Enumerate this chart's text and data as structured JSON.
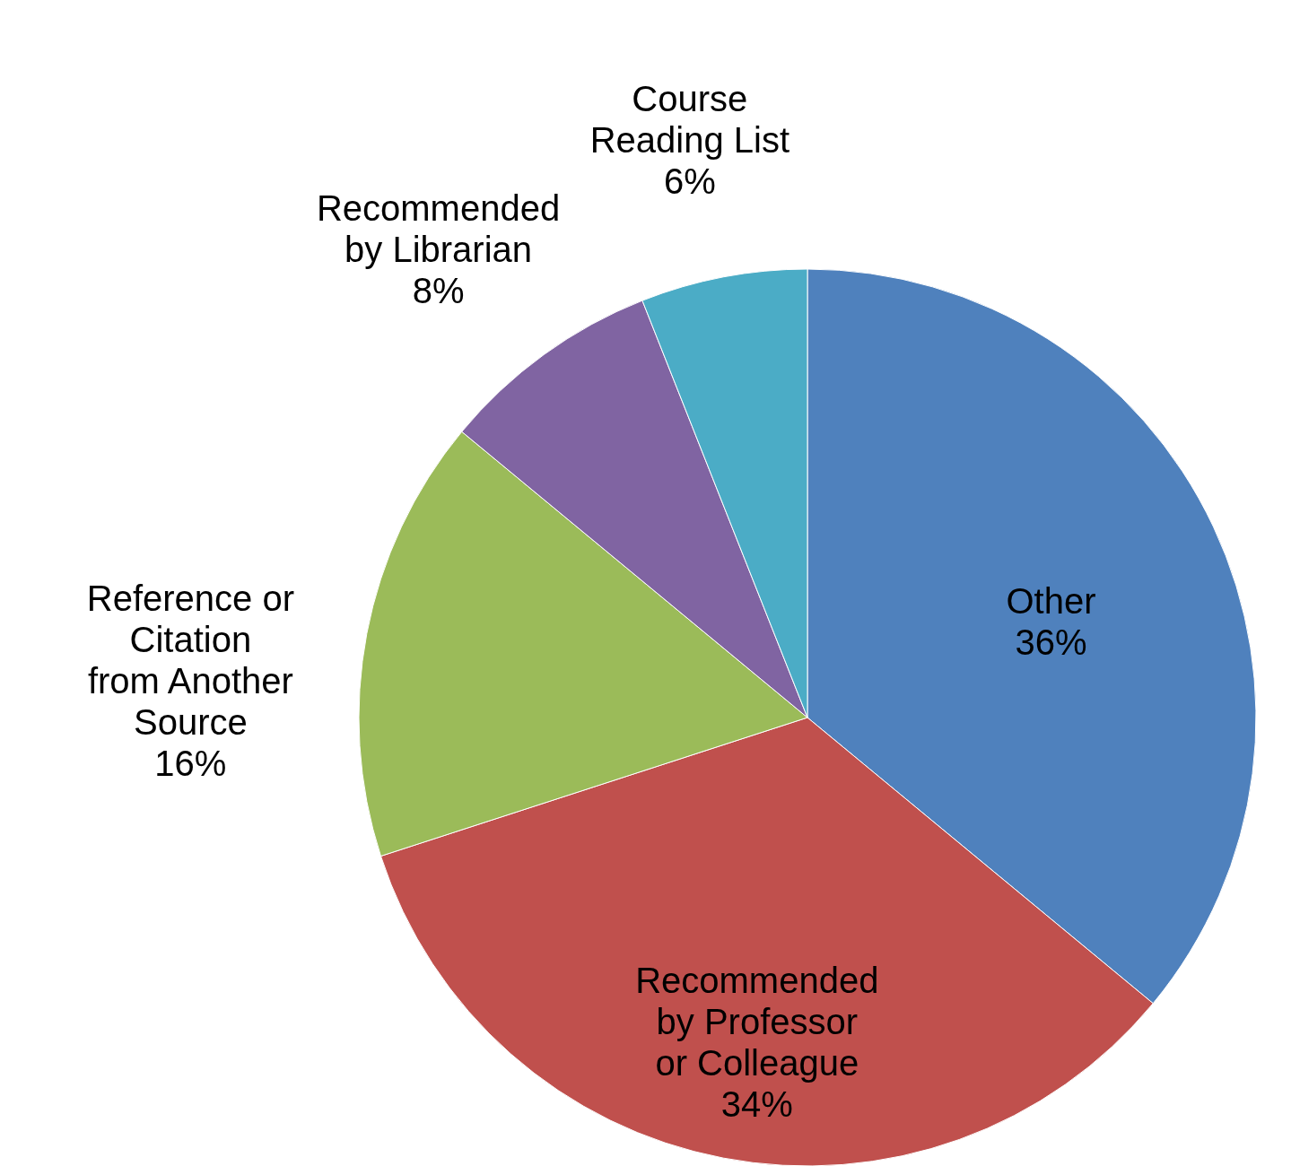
{
  "chart_data": {
    "type": "pie",
    "categories": [
      "Other",
      "Recommended by Professor or Colleague",
      "Reference or Citation from Another Source",
      "Recommended by Librarian",
      "Course Reading List"
    ],
    "values": [
      36,
      34,
      16,
      8,
      6
    ],
    "colors": [
      "#4f81bd",
      "#c0504d",
      "#9bbb59",
      "#8064a2",
      "#4bacc6"
    ],
    "value_labels": [
      "36%",
      "34%",
      "16%",
      "8%",
      "6%"
    ]
  }
}
